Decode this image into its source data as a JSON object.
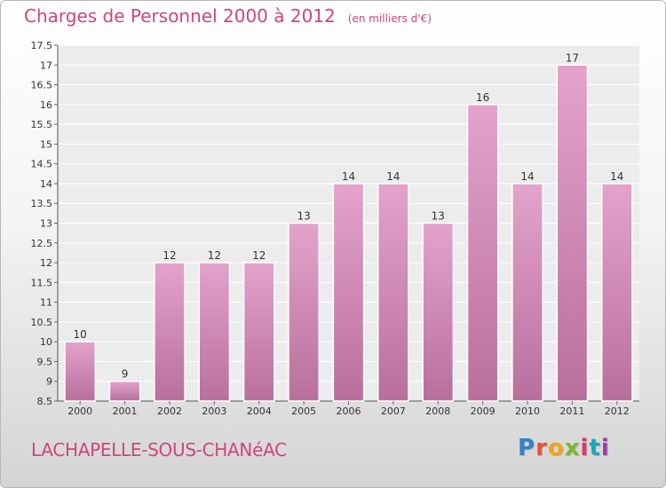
{
  "header": {
    "title": "Charges de Personnel 2000 à 2012",
    "subtitle": "(en milliers d'€)"
  },
  "footer": {
    "commune": "LACHAPELLE-SOUS-CHANéAC",
    "logo_letters": [
      "P",
      "r",
      "o",
      "x",
      "i",
      "t",
      "i"
    ]
  },
  "colors": {
    "title": "#d0457d",
    "bar_top": "#e3a3cb",
    "bar_bottom": "#b96f9c",
    "plot_bg": "#ececec",
    "grid": "#ffffff"
  },
  "chart_data": {
    "type": "bar",
    "title": "Charges de Personnel 2000 à 2012",
    "subtitle": "(en milliers d'€)",
    "categories": [
      "2000",
      "2001",
      "2002",
      "2003",
      "2004",
      "2005",
      "2006",
      "2007",
      "2008",
      "2009",
      "2010",
      "2011",
      "2012"
    ],
    "values": [
      10,
      9,
      12,
      12,
      12,
      13,
      14,
      14,
      13,
      16,
      14,
      17,
      14
    ],
    "data_labels": [
      "10",
      "9",
      "12",
      "12",
      "12",
      "13",
      "14",
      "14",
      "13",
      "16",
      "14",
      "17",
      "14"
    ],
    "ylim": [
      8.5,
      17.5
    ],
    "yticks": [
      8.5,
      9,
      9.5,
      10,
      10.5,
      11,
      11.5,
      12,
      12.5,
      13,
      13.5,
      14,
      14.5,
      15,
      15.5,
      16,
      16.5,
      17,
      17.5
    ],
    "ytick_labels": [
      "8.5",
      "9",
      "9.5",
      "10",
      "10.5",
      "11",
      "11.5",
      "12",
      "12.5",
      "13",
      "13.5",
      "14",
      "14.5",
      "15",
      "15.5",
      "16",
      "16.5",
      "17",
      "17.5"
    ],
    "grid": true,
    "legend": "none"
  }
}
